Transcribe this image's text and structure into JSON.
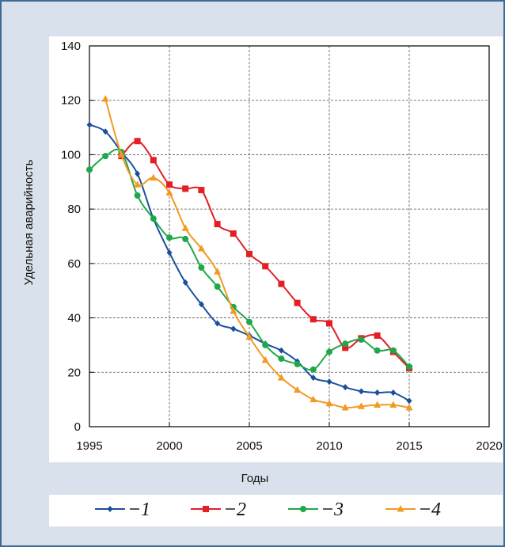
{
  "chart_data": {
    "type": "line",
    "xlabel": "Годы",
    "ylabel": "Удельная аварийность",
    "xlim": [
      1995,
      2020
    ],
    "ylim": [
      0,
      140
    ],
    "x_ticks": [
      "1995",
      "2000",
      "2005",
      "2010",
      "2015",
      "2020"
    ],
    "y_ticks": [
      "0",
      "20",
      "40",
      "60",
      "80",
      "100",
      "120",
      "140"
    ],
    "grid": true,
    "legend_position": "bottom",
    "series": [
      {
        "name": "1",
        "color": "#1a4f9c",
        "marker": "diamond",
        "points": [
          [
            1995,
            111
          ],
          [
            1996,
            108.5
          ],
          [
            1997,
            101
          ],
          [
            1998,
            93
          ],
          [
            1999,
            76.5
          ],
          [
            2000,
            64
          ],
          [
            2001,
            53
          ],
          [
            2002,
            45
          ],
          [
            2003,
            38
          ],
          [
            2004,
            36
          ],
          [
            2005,
            33.5
          ],
          [
            2006,
            30.5
          ],
          [
            2007,
            28
          ],
          [
            2008,
            24
          ],
          [
            2009,
            18
          ],
          [
            2010,
            16.5
          ],
          [
            2011,
            14.5
          ],
          [
            2012,
            13
          ],
          [
            2013,
            12.5
          ],
          [
            2014,
            12.5
          ],
          [
            2015,
            9.5
          ]
        ]
      },
      {
        "name": "2",
        "color": "#e31e24",
        "marker": "square",
        "points": [
          [
            1997,
            99.5
          ],
          [
            1998,
            105
          ],
          [
            1999,
            98
          ],
          [
            2000,
            89
          ],
          [
            2001,
            87.5
          ],
          [
            2002,
            87
          ],
          [
            2003,
            74.5
          ],
          [
            2004,
            71
          ],
          [
            2005,
            63.5
          ],
          [
            2006,
            59
          ],
          [
            2007,
            52.5
          ],
          [
            2008,
            45.5
          ],
          [
            2009,
            39.5
          ],
          [
            2010,
            38
          ],
          [
            2011,
            29
          ],
          [
            2012,
            32.5
          ],
          [
            2013,
            33.5
          ],
          [
            2014,
            27.5
          ],
          [
            2015,
            21.5
          ]
        ]
      },
      {
        "name": "3",
        "color": "#1fa84a",
        "marker": "circle",
        "points": [
          [
            1995,
            94.5
          ],
          [
            1996,
            99.5
          ],
          [
            1997,
            101
          ],
          [
            1998,
            85
          ],
          [
            1999,
            76.5
          ],
          [
            2000,
            69.5
          ],
          [
            2001,
            69
          ],
          [
            2002,
            58.5
          ],
          [
            2003,
            51.5
          ],
          [
            2004,
            44
          ],
          [
            2005,
            38.5
          ],
          [
            2006,
            30
          ],
          [
            2007,
            25
          ],
          [
            2008,
            23
          ],
          [
            2009,
            21
          ],
          [
            2010,
            27.5
          ],
          [
            2011,
            30.5
          ],
          [
            2012,
            32
          ],
          [
            2013,
            28
          ],
          [
            2014,
            28
          ],
          [
            2015,
            22
          ]
        ]
      },
      {
        "name": "4",
        "color": "#f29a22",
        "marker": "triangle",
        "points": [
          [
            1996,
            120.5
          ],
          [
            1997,
            100
          ],
          [
            1998,
            89
          ],
          [
            1999,
            91.5
          ],
          [
            2000,
            86
          ],
          [
            2001,
            73
          ],
          [
            2002,
            65.5
          ],
          [
            2003,
            57
          ],
          [
            2004,
            42.5
          ],
          [
            2005,
            33
          ],
          [
            2006,
            24.5
          ],
          [
            2007,
            18
          ],
          [
            2008,
            13.5
          ],
          [
            2009,
            10
          ],
          [
            2010,
            8.5
          ],
          [
            2011,
            7
          ],
          [
            2012,
            7.5
          ],
          [
            2013,
            8
          ],
          [
            2014,
            8
          ],
          [
            2015,
            7
          ]
        ]
      }
    ]
  }
}
